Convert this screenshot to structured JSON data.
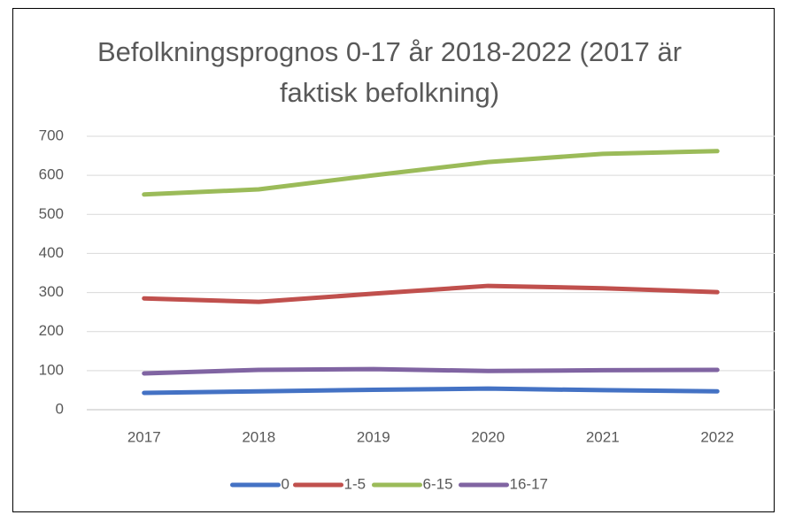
{
  "chart_data": {
    "type": "line",
    "title": "Befolkningsprognos 0-17 år 2018-2022 (2017 är faktisk befolkning)",
    "categories": [
      "2017",
      "2018",
      "2019",
      "2020",
      "2021",
      "2022"
    ],
    "series": [
      {
        "name": "0",
        "color": "#4472c4",
        "values": [
          43,
          47,
          51,
          54,
          50,
          47
        ]
      },
      {
        "name": "1-5",
        "color": "#c0504d",
        "values": [
          285,
          276,
          297,
          317,
          311,
          301
        ]
      },
      {
        "name": "6-15",
        "color": "#9bbb59",
        "values": [
          551,
          564,
          600,
          634,
          655,
          662
        ]
      },
      {
        "name": "16-17",
        "color": "#8064a2",
        "values": [
          93,
          102,
          104,
          99,
          101,
          102
        ]
      }
    ],
    "ylim": [
      0,
      700
    ],
    "yticks": [
      0,
      100,
      200,
      300,
      400,
      500,
      600,
      700
    ],
    "grid": true,
    "legend": "bottom"
  }
}
